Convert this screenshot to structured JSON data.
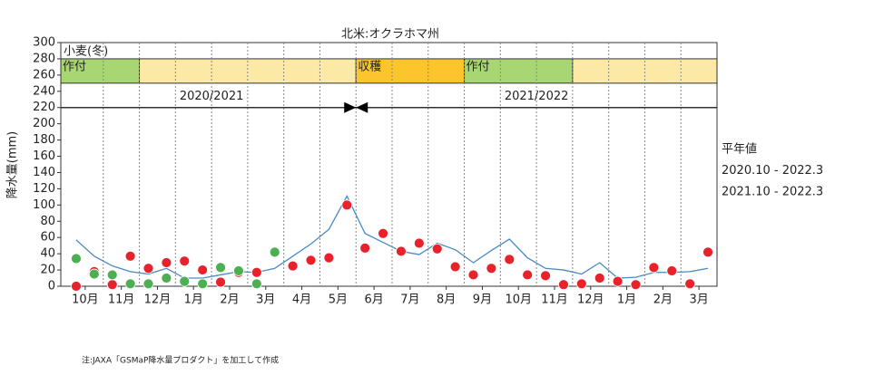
{
  "chart_data": {
    "type": "line",
    "title": "北米:オクラホマ州",
    "y_label": "降水量(mm)",
    "ylim": [
      0,
      300
    ],
    "yticks": [
      0,
      20,
      40,
      60,
      80,
      100,
      120,
      140,
      160,
      180,
      200,
      220,
      240,
      260,
      280,
      300
    ],
    "categories": [
      "10月",
      null,
      "11月",
      null,
      "12月",
      null,
      "1月",
      null,
      "2月",
      null,
      "3月",
      null,
      "4月",
      null,
      "5月",
      null,
      "6月",
      null,
      "7月",
      null,
      "8月",
      null,
      "9月",
      null,
      "10月",
      null,
      "11月",
      null,
      "12月",
      null,
      "1月",
      null,
      "2月",
      null,
      "3月",
      null
    ],
    "series": [
      {
        "name": "平年値",
        "color": "#4a8ac4",
        "style": "line",
        "values": [
          57,
          37,
          25,
          18,
          15,
          22,
          10,
          10,
          14,
          18,
          17,
          22,
          37,
          52,
          70,
          111,
          65,
          54,
          43,
          39,
          53,
          45,
          29,
          44,
          58,
          35,
          22,
          20,
          15,
          29,
          10,
          11,
          17,
          17,
          18,
          22
        ]
      },
      {
        "name": "2020.10 - 2022.3",
        "color": "#e8212b",
        "style": "dots",
        "values": [
          0,
          18,
          2,
          37,
          22,
          29,
          31,
          20,
          5,
          17,
          17,
          42,
          25,
          32,
          35,
          100,
          47,
          65,
          43,
          53,
          46,
          24,
          14,
          22,
          33,
          14,
          13,
          2,
          3,
          10,
          6,
          2,
          23,
          19,
          3,
          42
        ]
      },
      {
        "name": "2021.10 - 2022.3",
        "color": "#4cb050",
        "style": "dots",
        "values": [
          34,
          15,
          14,
          3,
          3,
          10,
          6,
          3,
          23,
          19,
          3,
          42,
          null,
          null,
          null,
          null,
          null,
          null,
          null,
          null,
          null,
          null,
          null,
          null,
          null,
          null,
          null,
          null,
          null,
          null,
          null,
          null,
          null,
          null,
          null,
          null
        ]
      }
    ],
    "crop": {
      "label": "小麦(冬)",
      "line_value": 220,
      "phases": [
        {
          "label": "作付",
          "from": 0,
          "to": 4,
          "color": "#a8d672"
        },
        {
          "from": 4,
          "to": 16,
          "color": "#fde9a6"
        },
        {
          "label": "収穫",
          "from": 16,
          "to": 22,
          "color": "#fdc52c"
        },
        {
          "label": "作付",
          "from": 22,
          "to": 28,
          "color": "#a8d672"
        },
        {
          "from": 28,
          "to": 36,
          "color": "#fde9a6"
        }
      ],
      "seasons": [
        {
          "label": "2020/2021",
          "at": 8
        },
        {
          "label": "2021/2022",
          "at": 26
        }
      ],
      "band": [
        250,
        280
      ]
    },
    "note": "注:JAXA「GSMaP降水量プロダクト」を加工して作成"
  }
}
